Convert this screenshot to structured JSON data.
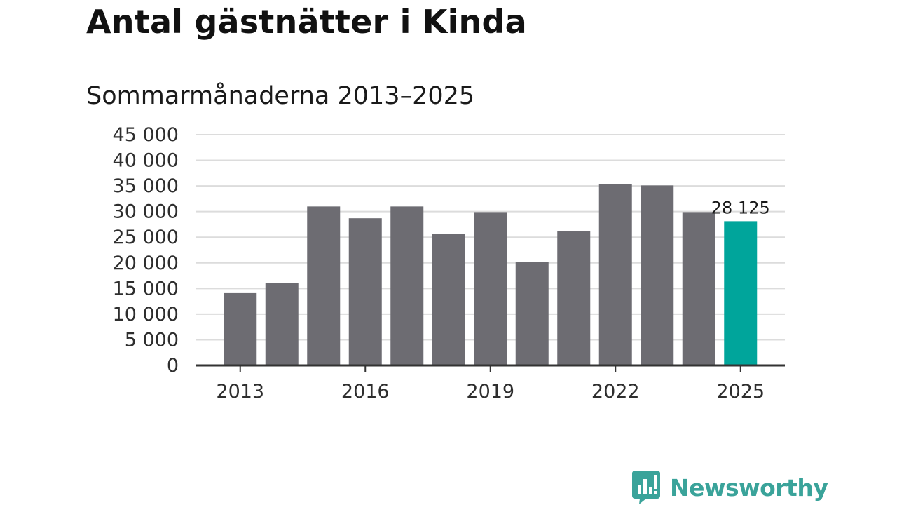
{
  "header": {
    "title": "Antal gästnätter i Kinda",
    "subtitle": "Sommarmånaderna 2013–2025"
  },
  "chart_data": {
    "type": "bar",
    "title": "Antal gästnätter i Kinda",
    "subtitle": "Sommarmånaderna 2013–2025",
    "xlabel": "",
    "ylabel": "",
    "categories": [
      "2013",
      "2014",
      "2015",
      "2016",
      "2017",
      "2018",
      "2019",
      "2020",
      "2021",
      "2022",
      "2023",
      "2024",
      "2025"
    ],
    "values": [
      14100,
      16100,
      31000,
      28700,
      31000,
      25600,
      29900,
      20200,
      26200,
      35400,
      35100,
      29900,
      28125
    ],
    "x_tick_labels": [
      "2013",
      "2016",
      "2019",
      "2022",
      "2025"
    ],
    "y_ticks": [
      0,
      5000,
      10000,
      15000,
      20000,
      25000,
      30000,
      35000,
      40000,
      45000
    ],
    "y_tick_labels": [
      "0",
      "5 000",
      "10 000",
      "15 000",
      "20 000",
      "25 000",
      "30 000",
      "35 000",
      "40 000",
      "45 000"
    ],
    "ylim": [
      0,
      45000
    ],
    "grid": true,
    "highlight_category": "2025",
    "data_label": "28 125",
    "colors": {
      "bar": "#6d6c72",
      "highlight": "#00a59b",
      "grid": "#dcdcdc",
      "axis": "#333333"
    }
  },
  "brand": {
    "name": "Newsworthy",
    "icon": "newsworthy-logo-icon",
    "color": "#3aa39a"
  }
}
